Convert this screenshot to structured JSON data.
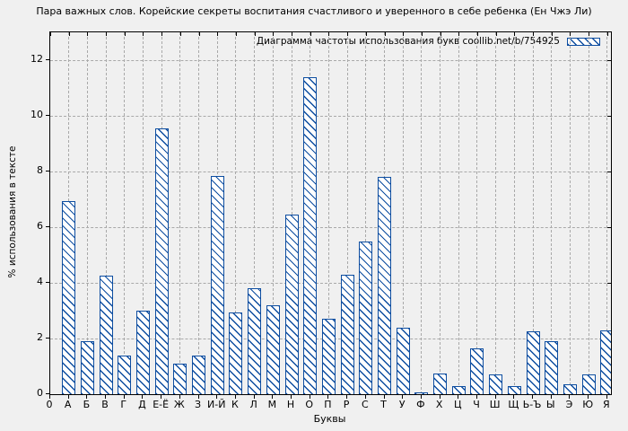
{
  "chart_data": {
    "type": "bar",
    "title": "Пара важных слов. Корейские секреты воспитания счастливого и уверенного в себе ребенка (Ен Чжэ Ли)",
    "legend": "Диаграмма частоты использования букв coollib.net/b/754925",
    "legend_position": "top-right-inside",
    "xlabel": "Буквы",
    "ylabel": "% использования в тексте",
    "x_origin_label": "0",
    "categories": [
      "А",
      "Б",
      "В",
      "Г",
      "Д",
      "Е-Ё",
      "Ж",
      "З",
      "И-Й",
      "К",
      "Л",
      "М",
      "Н",
      "О",
      "П",
      "Р",
      "С",
      "Т",
      "У",
      "Ф",
      "Х",
      "Ц",
      "Ч",
      "Ш",
      "Щ",
      "Ь-Ъ",
      "Ы",
      "Э",
      "Ю",
      "Я"
    ],
    "values": [
      6.95,
      1.9,
      4.25,
      1.4,
      3.0,
      9.55,
      1.1,
      1.4,
      7.85,
      2.95,
      3.8,
      3.2,
      6.45,
      11.4,
      2.7,
      4.3,
      5.5,
      7.8,
      2.4,
      0.05,
      0.75,
      0.3,
      1.65,
      0.7,
      0.3,
      2.25,
      1.9,
      0.35,
      0.7,
      2.3
    ],
    "yticks": [
      0,
      2,
      4,
      6,
      8,
      10,
      12
    ],
    "ylim": [
      0,
      13
    ],
    "xlim_units": [
      0,
      30.2
    ],
    "grid": true,
    "hatch": "diagonal-backslash",
    "bar_color": "#0d4da0",
    "bar_fill": "#ffffff"
  },
  "colors": {
    "background": "#f0f0f0",
    "grid": "#a9a9a9",
    "border": "#000000",
    "text": "#000000"
  }
}
